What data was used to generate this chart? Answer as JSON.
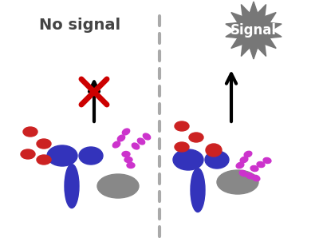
{
  "bg_color": "#ffffff",
  "left_label": "No signal",
  "right_label": "Signal",
  "label_fontsize": 14,
  "label_color": "#444444",
  "red_color": "#cc2222",
  "blue_color": "#3333bb",
  "gray_color": "#888888",
  "magenta_color": "#cc33cc",
  "cross_color": "#cc0000",
  "starburst_color": "#777777",
  "arrow_color": "#111111",
  "divider_color": "#aaaaaa",
  "figw": 4.0,
  "figh": 3.03,
  "dpi": 100
}
